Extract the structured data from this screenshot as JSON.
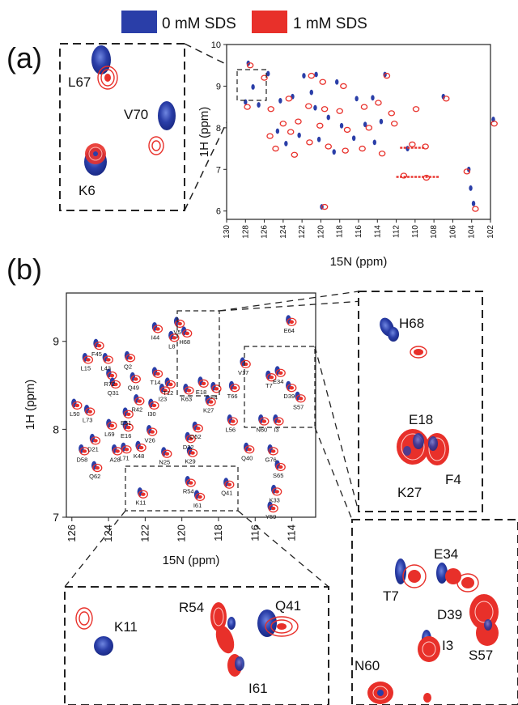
{
  "legend": {
    "series0": "0 mM SDS",
    "series1": "1 mM SDS",
    "colors": {
      "series0": "#2a3ea8",
      "series1": "#e8302a"
    }
  },
  "panel_labels": {
    "a": "(a)",
    "b": "(b)"
  },
  "chart_data": [
    {
      "type": "scatter",
      "panel": "(a)",
      "xlabel": "15N (ppm)",
      "ylabel": "1H (ppm)",
      "xlim": [
        130,
        102
      ],
      "ylim": [
        5.8,
        10
      ],
      "x_ticks": [
        "130",
        "128",
        "126",
        "124",
        "122",
        "120",
        "118",
        "116",
        "114",
        "112",
        "110",
        "108",
        "106",
        "104",
        "102"
      ],
      "y_ticks": [
        "6",
        "7",
        "8",
        "9",
        "10"
      ],
      "series": [
        {
          "values": [
            [
              127.7,
              9.55
            ],
            [
              125.6,
              9.3
            ],
            [
              127.2,
              8.98
            ],
            [
              121.8,
              9.25
            ],
            [
              120.5,
              9.28
            ],
            [
              123.0,
              8.75
            ],
            [
              121.0,
              8.85
            ],
            [
              118.3,
              9.1
            ],
            [
              116.2,
              8.7
            ],
            [
              114.5,
              8.72
            ],
            [
              113.2,
              9.28
            ],
            [
              107.0,
              8.75
            ],
            [
              101.7,
              8.2
            ],
            [
              128.0,
              8.62
            ],
            [
              126.6,
              8.55
            ],
            [
              124.3,
              8.65
            ],
            [
              120.6,
              8.48
            ],
            [
              119.2,
              8.25
            ],
            [
              117.8,
              8.05
            ],
            [
              115.3,
              8.08
            ],
            [
              113.6,
              8.15
            ],
            [
              124.6,
              7.92
            ],
            [
              122.3,
              7.82
            ],
            [
              120.2,
              7.72
            ],
            [
              118.6,
              7.42
            ],
            [
              116.5,
              7.75
            ],
            [
              114.3,
              7.65
            ],
            [
              123.7,
              7.62
            ],
            [
              119.9,
              6.1
            ],
            [
              104.1,
              6.55
            ],
            [
              103.8,
              6.18
            ],
            [
              104.3,
              7.0
            ],
            [
              110.8,
              7.5
            ]
          ]
        },
        {
          "values": [
            [
              127.5,
              9.5
            ],
            [
              126.0,
              9.2
            ],
            [
              121.0,
              9.25
            ],
            [
              119.8,
              9.1
            ],
            [
              117.6,
              9.0
            ],
            [
              113.0,
              9.25
            ],
            [
              106.7,
              8.7
            ],
            [
              101.6,
              8.1
            ],
            [
              127.8,
              8.5
            ],
            [
              125.3,
              8.45
            ],
            [
              123.4,
              8.7
            ],
            [
              121.3,
              8.52
            ],
            [
              119.6,
              8.45
            ],
            [
              118.0,
              8.4
            ],
            [
              115.4,
              8.5
            ],
            [
              113.9,
              8.6
            ],
            [
              112.5,
              8.35
            ],
            [
              109.9,
              8.45
            ],
            [
              124.0,
              8.1
            ],
            [
              122.4,
              8.15
            ],
            [
              120.1,
              8.05
            ],
            [
              117.2,
              7.95
            ],
            [
              114.9,
              8.0
            ],
            [
              112.2,
              8.1
            ],
            [
              125.4,
              7.8
            ],
            [
              123.2,
              7.9
            ],
            [
              121.2,
              7.65
            ],
            [
              119.2,
              7.55
            ],
            [
              117.4,
              7.45
            ],
            [
              115.6,
              7.5
            ],
            [
              113.5,
              7.38
            ],
            [
              110.3,
              7.6
            ],
            [
              108.9,
              7.55
            ],
            [
              111.2,
              6.85
            ],
            [
              108.8,
              6.8
            ],
            [
              104.5,
              6.95
            ],
            [
              119.6,
              6.1
            ],
            [
              103.6,
              6.05
            ],
            [
              124.8,
              7.5
            ],
            [
              122.8,
              7.35
            ]
          ]
        }
      ],
      "inset": {
        "labels": [
          "L67",
          "V70",
          "K6"
        ]
      }
    },
    {
      "type": "scatter",
      "panel": "(b)",
      "xlabel": "15N (ppm)",
      "ylabel": "1H (ppm)",
      "xlim": [
        126.3,
        112.7
      ],
      "ylim": [
        7,
        9.55
      ],
      "x_ticks": [
        "126",
        "124",
        "122",
        "120",
        "118",
        "116",
        "114"
      ],
      "y_ticks": [
        "7",
        "8",
        "9"
      ],
      "peaks": [
        {
          "label": "V5",
          "x": 120.2,
          "y": 9.21
        },
        {
          "label": "I44",
          "x": 121.4,
          "y": 9.15
        },
        {
          "label": "L8",
          "x": 120.5,
          "y": 9.05
        },
        {
          "label": "H68",
          "x": 119.8,
          "y": 9.1
        },
        {
          "label": "E64",
          "x": 114.1,
          "y": 9.23
        },
        {
          "label": "F45",
          "x": 124.6,
          "y": 8.96
        },
        {
          "label": "L15",
          "x": 125.2,
          "y": 8.8
        },
        {
          "label": "L43",
          "x": 124.1,
          "y": 8.8
        },
        {
          "label": "Q2",
          "x": 122.9,
          "y": 8.82
        },
        {
          "label": "T14",
          "x": 121.4,
          "y": 8.64
        },
        {
          "label": "V17",
          "x": 116.6,
          "y": 8.75
        },
        {
          "label": "E18",
          "x": 118.9,
          "y": 8.53
        },
        {
          "label": "R72",
          "x": 123.9,
          "y": 8.62
        },
        {
          "label": "Q49",
          "x": 122.6,
          "y": 8.58
        },
        {
          "label": "Q31",
          "x": 123.7,
          "y": 8.52
        },
        {
          "label": "T12",
          "x": 120.7,
          "y": 8.52
        },
        {
          "label": "I23",
          "x": 121.0,
          "y": 8.45
        },
        {
          "label": "K63",
          "x": 119.7,
          "y": 8.45
        },
        {
          "label": "F4",
          "x": 118.2,
          "y": 8.47
        },
        {
          "label": "T66",
          "x": 117.2,
          "y": 8.48
        },
        {
          "label": "T7",
          "x": 115.2,
          "y": 8.6
        },
        {
          "label": "E34",
          "x": 114.7,
          "y": 8.65
        },
        {
          "label": "D39",
          "x": 114.1,
          "y": 8.48
        },
        {
          "label": "S57",
          "x": 113.6,
          "y": 8.36
        },
        {
          "label": "K27",
          "x": 118.5,
          "y": 8.32
        },
        {
          "label": "R42",
          "x": 122.4,
          "y": 8.33
        },
        {
          "label": "L50",
          "x": 125.8,
          "y": 8.28
        },
        {
          "label": "L73",
          "x": 125.1,
          "y": 8.21
        },
        {
          "label": "E51",
          "x": 123.0,
          "y": 8.18
        },
        {
          "label": "I30",
          "x": 121.6,
          "y": 8.28
        },
        {
          "label": "N60",
          "x": 115.6,
          "y": 8.1
        },
        {
          "label": "I3",
          "x": 114.8,
          "y": 8.1
        },
        {
          "label": "L69",
          "x": 123.9,
          "y": 8.05
        },
        {
          "label": "E16",
          "x": 123.0,
          "y": 8.03
        },
        {
          "label": "V26",
          "x": 121.7,
          "y": 7.98
        },
        {
          "label": "D52",
          "x": 119.2,
          "y": 8.02
        },
        {
          "label": "L56",
          "x": 117.3,
          "y": 8.1
        },
        {
          "label": "D21",
          "x": 124.8,
          "y": 7.88
        },
        {
          "label": "A28",
          "x": 123.6,
          "y": 7.76
        },
        {
          "label": "L71",
          "x": 123.1,
          "y": 7.78
        },
        {
          "label": "K48",
          "x": 122.3,
          "y": 7.8
        },
        {
          "label": "N25",
          "x": 120.9,
          "y": 7.73
        },
        {
          "label": "D32",
          "x": 119.6,
          "y": 7.9
        },
        {
          "label": "K29",
          "x": 119.5,
          "y": 7.74
        },
        {
          "label": "D58",
          "x": 125.4,
          "y": 7.76
        },
        {
          "label": "Q40",
          "x": 116.4,
          "y": 7.78
        },
        {
          "label": "G76",
          "x": 115.1,
          "y": 7.76
        },
        {
          "label": "S65",
          "x": 114.7,
          "y": 7.58
        },
        {
          "label": "Q62",
          "x": 124.7,
          "y": 7.57
        },
        {
          "label": "K11",
          "x": 122.2,
          "y": 7.27
        },
        {
          "label": "R54",
          "x": 119.6,
          "y": 7.4
        },
        {
          "label": "Q41",
          "x": 117.5,
          "y": 7.38
        },
        {
          "label": "I61",
          "x": 119.1,
          "y": 7.24
        },
        {
          "label": "K33",
          "x": 114.9,
          "y": 7.3
        },
        {
          "label": "Y59",
          "x": 115.1,
          "y": 7.11
        }
      ],
      "insets": [
        {
          "labels": [
            "H68",
            "E18",
            "K27",
            "F4"
          ]
        },
        {
          "labels": [
            "K11",
            "R54",
            "Q41",
            "I61"
          ]
        },
        {
          "labels": [
            "T7",
            "E34",
            "D39",
            "I3",
            "S57",
            "N60"
          ]
        }
      ]
    }
  ]
}
